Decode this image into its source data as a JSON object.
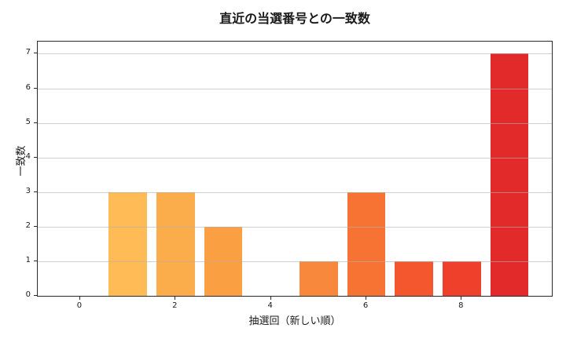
{
  "chart_data": {
    "type": "bar",
    "title": "直近の当選番号との一致数",
    "xlabel": "抽選回（新しい順）",
    "ylabel": "一致数",
    "categories": [
      0,
      1,
      2,
      3,
      4,
      5,
      6,
      7,
      8,
      9
    ],
    "values": [
      0,
      3,
      3,
      2,
      0,
      1,
      3,
      1,
      1,
      7
    ],
    "bar_colors": [
      "#FFC961",
      "#FEBB56",
      "#FCAD4B",
      "#FA9F42",
      "#F9943F",
      "#F8883B",
      "#F77334",
      "#F4572E",
      "#EF402B",
      "#E32A2B"
    ],
    "bar_width": 0.8,
    "xticks": [
      0,
      2,
      4,
      6,
      8
    ],
    "yticks": [
      0,
      1,
      2,
      3,
      4,
      5,
      6,
      7
    ],
    "xlim": [
      -0.89,
      9.89
    ],
    "ylim": [
      0,
      7.35
    ],
    "grid": "horizontal",
    "grid_color": "rgba(176,176,176,0.6)",
    "spine_color": "#2a2a2a",
    "background": "#ffffff",
    "legend": "none"
  }
}
